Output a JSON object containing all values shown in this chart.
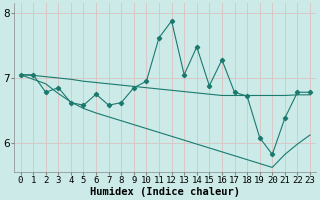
{
  "xlabel": "Humidex (Indice chaleur)",
  "bg_color": "#cceae8",
  "line_color": "#1a7a6e",
  "grid_color": "#d9c8c8",
  "x_values": [
    0,
    1,
    2,
    3,
    4,
    5,
    6,
    7,
    8,
    9,
    10,
    11,
    12,
    13,
    14,
    15,
    16,
    17,
    18,
    19,
    20,
    21,
    22,
    23
  ],
  "y_main": [
    7.05,
    7.05,
    6.78,
    6.85,
    6.62,
    6.58,
    6.75,
    6.58,
    6.62,
    6.85,
    6.95,
    7.62,
    7.88,
    7.05,
    7.48,
    6.88,
    7.28,
    6.78,
    6.72,
    6.08,
    5.82,
    6.38,
    6.78,
    6.78
  ],
  "y_trend1": [
    7.05,
    7.04,
    7.02,
    7.0,
    6.98,
    6.95,
    6.93,
    6.91,
    6.89,
    6.87,
    6.85,
    6.83,
    6.81,
    6.79,
    6.77,
    6.75,
    6.73,
    6.73,
    6.73,
    6.73,
    6.73,
    6.73,
    6.74,
    6.74
  ],
  "y_trend2": [
    7.05,
    6.98,
    6.91,
    6.76,
    6.63,
    6.53,
    6.46,
    6.4,
    6.34,
    6.28,
    6.22,
    6.16,
    6.1,
    6.04,
    5.98,
    5.92,
    5.86,
    5.8,
    5.74,
    5.68,
    5.62,
    5.82,
    5.98,
    6.12
  ],
  "xlim": [
    -0.5,
    23.5
  ],
  "ylim": [
    5.55,
    8.15
  ],
  "yticks": [
    6,
    7,
    8
  ],
  "xtick_labels": [
    "0",
    "1",
    "2",
    "3",
    "4",
    "5",
    "6",
    "7",
    "8",
    "9",
    "10",
    "11",
    "12",
    "13",
    "14",
    "15",
    "16",
    "17",
    "18",
    "19",
    "20",
    "21",
    "22",
    "23"
  ],
  "xlabel_fontsize": 7.5,
  "tick_fontsize": 6.5,
  "ytick_fontsize": 7.5
}
